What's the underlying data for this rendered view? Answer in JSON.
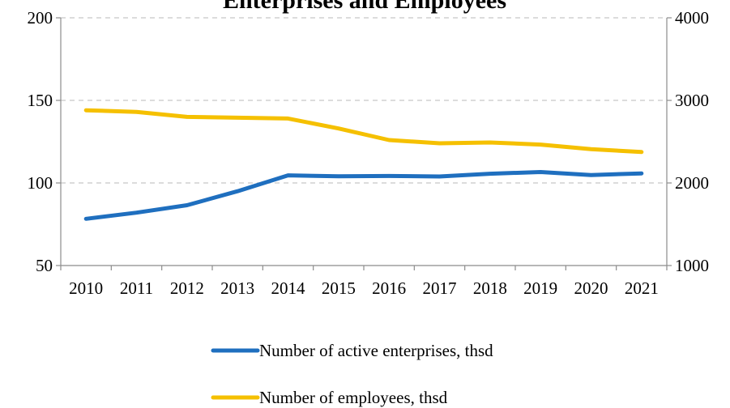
{
  "chart_data": {
    "type": "line",
    "title": "Enterprises and Employees",
    "x": [
      "2010",
      "2011",
      "2012",
      "2013",
      "2014",
      "2015",
      "2016",
      "2017",
      "2018",
      "2019",
      "2020",
      "2021"
    ],
    "series": [
      {
        "name": "Number of active enterprises, thsd",
        "axis": "left",
        "color": "#1f6fbf",
        "values": [
          78.3,
          82.0,
          86.5,
          95.0,
          104.6,
          104.0,
          104.2,
          103.9,
          105.6,
          106.6,
          104.8,
          105.8
        ]
      },
      {
        "name": "Number of employees, thsd",
        "axis": "right",
        "color": "#f5c000",
        "values": [
          2880,
          2860,
          2800,
          2790,
          2780,
          2660,
          2520,
          2480,
          2490,
          2465,
          2410,
          2375
        ]
      }
    ],
    "y_left": {
      "min": 50,
      "max": 200,
      "ticks": [
        50,
        100,
        150,
        200
      ]
    },
    "y_right": {
      "min": 1000,
      "max": 4000,
      "ticks": [
        1000,
        2000,
        3000,
        4000
      ]
    },
    "grid": true,
    "legend_position": "bottom"
  }
}
